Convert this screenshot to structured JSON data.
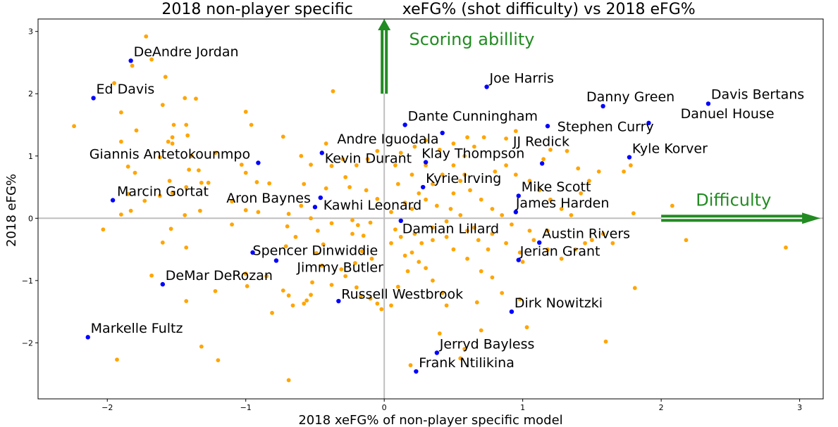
{
  "chart_data": {
    "type": "scatter",
    "title": "2018 non-player specific          xeFG% (shot difficulty) vs 2018 eFG%",
    "xlabel": "2018 xeFG% of non-player specific model",
    "ylabel": "2018 eFG%",
    "xlim": [
      -2.5,
      3.17
    ],
    "ylim": [
      -2.9,
      3.2
    ],
    "xticks": [
      -2,
      -1,
      0,
      1,
      2,
      3
    ],
    "yticks": [
      -2,
      -1,
      0,
      1,
      2,
      3
    ],
    "xtick_labels": [
      "−2",
      "−1",
      "0",
      "1",
      "2",
      "3"
    ],
    "ytick_labels": [
      "−2",
      "−1",
      "0",
      "1",
      "2",
      "3"
    ],
    "grid": false,
    "colors": {
      "highlight": "#0000ff",
      "other": "#ffa500",
      "annotation": "#228b22",
      "refline": "#bfbfbf"
    },
    "annotations": [
      {
        "text": "Scoring abillity",
        "direction": "up",
        "from": [
          0,
          2.0
        ],
        "to": [
          0,
          3.2
        ],
        "text_pos": [
          0.18,
          2.78
        ]
      },
      {
        "text": "Difficulty",
        "direction": "right",
        "from": [
          2.0,
          0
        ],
        "to": [
          3.15,
          0
        ],
        "text_pos": [
          2.25,
          0.2
        ]
      }
    ],
    "highlighted": [
      {
        "name": "DeAndre Jordan",
        "x": -1.83,
        "y": 2.53,
        "lx": -1.81,
        "ly": 2.6
      },
      {
        "name": "Ed Davis",
        "x": -2.1,
        "y": 1.93,
        "lx": -2.08,
        "ly": 2.0
      },
      {
        "name": "Giannis Antetokounmpo",
        "x": -0.91,
        "y": 0.89,
        "lx": -2.13,
        "ly": 0.96
      },
      {
        "name": "Marcin Gortat",
        "x": -1.96,
        "y": 0.29,
        "lx": -1.93,
        "ly": 0.36
      },
      {
        "name": "Aron Baynes",
        "x": -0.46,
        "y": 0.33,
        "lx": -1.14,
        "ly": 0.25
      },
      {
        "name": "Kawhi Leonard",
        "x": -0.5,
        "y": 0.18,
        "lx": -0.44,
        "ly": 0.14
      },
      {
        "name": "Spencer Dinwiddie",
        "x": -0.95,
        "y": -0.55,
        "lx": -0.95,
        "ly": -0.59
      },
      {
        "name": "Jimmy Butler",
        "x": -0.78,
        "y": -0.68,
        "lx": -0.63,
        "ly": -0.86
      },
      {
        "name": "DeMar DeRozan",
        "x": -1.6,
        "y": -1.06,
        "lx": -1.58,
        "ly": -0.99
      },
      {
        "name": "Markelle Fultz",
        "x": -2.14,
        "y": -1.91,
        "lx": -2.12,
        "ly": -1.84
      },
      {
        "name": "Russell Westbrook",
        "x": -0.33,
        "y": -1.33,
        "lx": -0.31,
        "ly": -1.29
      },
      {
        "name": "Kevin Durant",
        "x": -0.45,
        "y": 1.05,
        "lx": -0.43,
        "ly": 0.89
      },
      {
        "name": "Andre Iguodala",
        "x": 0.42,
        "y": 1.37,
        "lx": -0.34,
        "ly": 1.2
      },
      {
        "name": "Dante Cunningham",
        "x": 0.15,
        "y": 1.5,
        "lx": 0.17,
        "ly": 1.57
      },
      {
        "name": "Klay Thompson",
        "x": 0.3,
        "y": 0.9,
        "lx": 0.27,
        "ly": 0.97
      },
      {
        "name": "Kyrie Irving",
        "x": 0.28,
        "y": 0.5,
        "lx": 0.3,
        "ly": 0.57
      },
      {
        "name": "Damian Lillard",
        "x": 0.12,
        "y": -0.04,
        "lx": 0.13,
        "ly": -0.24
      },
      {
        "name": "Joe Harris",
        "x": 0.74,
        "y": 2.11,
        "lx": 0.76,
        "ly": 2.18
      },
      {
        "name": "Stephen Curry",
        "x": 1.18,
        "y": 1.48,
        "lx": 1.25,
        "ly": 1.4
      },
      {
        "name": "JJ Redick",
        "x": 1.14,
        "y": 0.88,
        "lx": 0.93,
        "ly": 1.16
      },
      {
        "name": "Mike Scott",
        "x": 0.97,
        "y": 0.36,
        "lx": 0.99,
        "ly": 0.43
      },
      {
        "name": "James Harden",
        "x": 0.95,
        "y": 0.1,
        "lx": 0.95,
        "ly": 0.17
      },
      {
        "name": "Austin Rivers",
        "x": 1.12,
        "y": -0.39,
        "lx": 1.14,
        "ly": -0.32
      },
      {
        "name": "Jerian Grant",
        "x": 0.97,
        "y": -0.67,
        "lx": 0.98,
        "ly": -0.6
      },
      {
        "name": "Dirk Nowitzki",
        "x": 0.92,
        "y": -1.5,
        "lx": 0.94,
        "ly": -1.43
      },
      {
        "name": "Danny Green",
        "x": 1.58,
        "y": 1.8,
        "lx": 1.46,
        "ly": 1.88
      },
      {
        "name": "Davis Bertans",
        "x": 2.34,
        "y": 1.84,
        "lx": 2.36,
        "ly": 1.92
      },
      {
        "name": "Danuel House",
        "x": 1.91,
        "y": 1.53,
        "lx": 2.14,
        "ly": 1.61
      },
      {
        "name": "Kyle Korver",
        "x": 1.77,
        "y": 0.98,
        "lx": 1.79,
        "ly": 1.05
      },
      {
        "name": "Jerryd Bayless",
        "x": 0.38,
        "y": -2.16,
        "lx": 0.4,
        "ly": -2.09
      },
      {
        "name": "Frank Ntilikina",
        "x": 0.23,
        "y": -2.46,
        "lx": 0.25,
        "ly": -2.39
      }
    ],
    "others": [
      [
        -1.72,
        2.92
      ],
      [
        -1.68,
        2.55
      ],
      [
        -1.82,
        2.45
      ],
      [
        -1.58,
        2.27
      ],
      [
        -0.37,
        2.04
      ],
      [
        -1.95,
        2.17
      ],
      [
        -1.9,
        1.7
      ],
      [
        -1.6,
        1.82
      ],
      [
        -1.44,
        1.93
      ],
      [
        -1.36,
        1.92
      ],
      [
        -1.79,
        1.41
      ],
      [
        -2.24,
        1.48
      ],
      [
        -1.52,
        1.5
      ],
      [
        -1.53,
        1.3
      ],
      [
        -1.43,
        1.5
      ],
      [
        -1.42,
        1.33
      ],
      [
        -1.9,
        1.23
      ],
      [
        -1.56,
        1.23
      ],
      [
        -1.53,
        1.2
      ],
      [
        -1.0,
        1.71
      ],
      [
        -0.96,
        1.5
      ],
      [
        -0.73,
        1.31
      ],
      [
        -0.42,
        1.2
      ],
      [
        -0.6,
        1.0
      ],
      [
        -1.85,
        0.83
      ],
      [
        -1.8,
        0.73
      ],
      [
        -1.62,
        0.98
      ],
      [
        -1.41,
        0.78
      ],
      [
        -1.34,
        0.77
      ],
      [
        -1.39,
        1.0
      ],
      [
        -1.22,
        1.05
      ],
      [
        -1.03,
        0.86
      ],
      [
        -1.0,
        0.73
      ],
      [
        -0.92,
        0.58
      ],
      [
        -0.53,
        0.86
      ],
      [
        -0.38,
        0.84
      ],
      [
        -0.28,
        0.66
      ],
      [
        -1.85,
        0.39
      ],
      [
        -1.55,
        0.6
      ],
      [
        -1.43,
        0.5
      ],
      [
        -1.32,
        0.57
      ],
      [
        -1.27,
        0.57
      ],
      [
        -1.9,
        0.06
      ],
      [
        -1.83,
        0.12
      ],
      [
        -1.73,
        0.28
      ],
      [
        -1.62,
        0.36
      ],
      [
        -1.53,
        0.41
      ],
      [
        -1.33,
        0.12
      ],
      [
        -1.1,
        0.27
      ],
      [
        -1.0,
        0.13
      ],
      [
        -0.83,
        0.56
      ],
      [
        -0.58,
        0.55
      ],
      [
        -0.42,
        0.48
      ],
      [
        -0.25,
        0.5
      ],
      [
        -0.13,
        0.45
      ],
      [
        -0.05,
        0.31
      ],
      [
        -2.03,
        -0.18
      ],
      [
        -1.6,
        -0.39
      ],
      [
        -1.43,
        -0.47
      ],
      [
        -1.54,
        -0.17
      ],
      [
        -1.44,
        0.05
      ],
      [
        -1.1,
        -0.1
      ],
      [
        -0.91,
        0.1
      ],
      [
        -0.69,
        0.07
      ],
      [
        -0.6,
        0.2
      ],
      [
        -0.53,
        0.0
      ],
      [
        -0.7,
        -0.13
      ],
      [
        -0.48,
        -0.2
      ],
      [
        -0.38,
        -0.08
      ],
      [
        -0.23,
        -0.03
      ],
      [
        -0.19,
        -0.11
      ],
      [
        -0.1,
        -0.07
      ],
      [
        -0.64,
        -0.3
      ],
      [
        -0.71,
        -0.45
      ],
      [
        -0.49,
        -0.56
      ],
      [
        -0.44,
        -0.42
      ],
      [
        -0.23,
        -0.25
      ],
      [
        -0.15,
        -0.28
      ],
      [
        -1.68,
        -0.92
      ],
      [
        -1.43,
        -1.33
      ],
      [
        -1.32,
        -2.06
      ],
      [
        -1.2,
        -2.28
      ],
      [
        -1.22,
        -1.17
      ],
      [
        -1.0,
        -0.89
      ],
      [
        -0.99,
        -1.09
      ],
      [
        -0.85,
        -0.93
      ],
      [
        -0.81,
        -1.52
      ],
      [
        -0.73,
        -1.16
      ],
      [
        -0.69,
        -1.24
      ],
      [
        -0.66,
        -1.4
      ],
      [
        -0.69,
        -2.6
      ],
      [
        -0.58,
        -1.37
      ],
      [
        -0.56,
        -1.32
      ],
      [
        -0.53,
        -1.23
      ],
      [
        -0.52,
        -1.03
      ],
      [
        -0.45,
        -0.76
      ],
      [
        -0.38,
        -1.07
      ],
      [
        -0.31,
        -0.82
      ],
      [
        -0.28,
        -0.93
      ],
      [
        -0.2,
        -1.11
      ],
      [
        -0.17,
        -1.25
      ],
      [
        -0.1,
        -1.29
      ],
      [
        -0.05,
        -1.37
      ],
      [
        -0.02,
        -1.46
      ],
      [
        -0.16,
        -0.53
      ],
      [
        -0.09,
        -0.65
      ],
      [
        -0.21,
        -0.72
      ],
      [
        -1.93,
        -2.27
      ],
      [
        0.05,
        -1.4
      ],
      [
        0.1,
        -1.1
      ],
      [
        0.17,
        -0.85
      ],
      [
        0.2,
        -0.55
      ],
      [
        0.27,
        -0.4
      ],
      [
        0.3,
        -0.8
      ],
      [
        0.35,
        -1.0
      ],
      [
        0.42,
        -1.2
      ],
      [
        0.45,
        -1.4
      ],
      [
        0.4,
        -1.85
      ],
      [
        0.55,
        -2.25
      ],
      [
        0.58,
        -2.1
      ],
      [
        0.67,
        -1.35
      ],
      [
        0.7,
        -1.8
      ],
      [
        0.19,
        -2.36
      ],
      [
        0.05,
        -0.4
      ],
      [
        0.12,
        -0.3
      ],
      [
        0.22,
        -0.25
      ],
      [
        0.35,
        -0.15
      ],
      [
        0.45,
        -0.3
      ],
      [
        0.5,
        -0.5
      ],
      [
        0.6,
        -0.65
      ],
      [
        0.7,
        -0.85
      ],
      [
        0.78,
        -0.95
      ],
      [
        0.85,
        -1.2
      ],
      [
        0.98,
        -1.3
      ],
      [
        1.03,
        -1.75
      ],
      [
        1.0,
        -0.7
      ],
      [
        0.05,
        0.1
      ],
      [
        0.15,
        0.25
      ],
      [
        0.25,
        0.4
      ],
      [
        0.35,
        0.55
      ],
      [
        0.42,
        0.7
      ],
      [
        0.5,
        0.85
      ],
      [
        0.58,
        1.0
      ],
      [
        0.65,
        1.15
      ],
      [
        0.72,
        1.3
      ],
      [
        0.8,
        0.75
      ],
      [
        0.88,
        0.85
      ],
      [
        0.95,
        0.7
      ],
      [
        1.05,
        0.6
      ],
      [
        1.12,
        0.45
      ],
      [
        1.2,
        0.3
      ],
      [
        1.28,
        0.15
      ],
      [
        1.35,
        0.05
      ],
      [
        1.42,
        0.4
      ],
      [
        1.48,
        0.6
      ],
      [
        1.55,
        0.75
      ],
      [
        1.73,
        0.75
      ],
      [
        1.78,
        0.85
      ],
      [
        1.4,
        0.8
      ],
      [
        1.32,
        1.08
      ],
      [
        1.2,
        1.1
      ],
      [
        1.15,
        0.95
      ],
      [
        0.88,
        1.28
      ],
      [
        0.95,
        1.4
      ],
      [
        0.1,
        0.55
      ],
      [
        0.2,
        0.7
      ],
      [
        0.3,
        0.85
      ],
      [
        0.55,
        0.6
      ],
      [
        0.62,
        0.45
      ],
      [
        0.7,
        0.3
      ],
      [
        0.78,
        0.15
      ],
      [
        0.85,
        0.05
      ],
      [
        0.92,
        -0.1
      ],
      [
        1.05,
        -0.2
      ],
      [
        1.18,
        -0.5
      ],
      [
        1.28,
        -0.65
      ],
      [
        1.38,
        -0.5
      ],
      [
        1.45,
        -0.4
      ],
      [
        1.5,
        -0.35
      ],
      [
        1.58,
        -0.25
      ],
      [
        1.65,
        -0.4
      ],
      [
        1.8,
        0.08
      ],
      [
        2.08,
        0.2
      ],
      [
        2.18,
        -0.35
      ],
      [
        2.9,
        -0.47
      ],
      [
        1.6,
        -1.98
      ],
      [
        1.81,
        -1.12
      ],
      [
        0.6,
        -0.2
      ],
      [
        0.68,
        -0.35
      ],
      [
        0.75,
        -0.5
      ],
      [
        0.48,
        0.15
      ],
      [
        0.38,
        0.2
      ],
      [
        0.3,
        0.3
      ],
      [
        0.2,
        0.15
      ],
      [
        0.08,
        -0.18
      ],
      [
        0.15,
        -0.6
      ],
      [
        0.25,
        -0.7
      ],
      [
        0.35,
        -0.35
      ],
      [
        0.45,
        -0.05
      ],
      [
        0.55,
        0.05
      ],
      [
        0.65,
        -0.15
      ],
      [
        0.78,
        -0.25
      ],
      [
        0.88,
        -0.4
      ],
      [
        0.98,
        -0.55
      ],
      [
        1.08,
        -0.35
      ],
      [
        1.18,
        -0.2
      ],
      [
        0.12,
        1.05
      ],
      [
        0.22,
        1.15
      ],
      [
        0.3,
        1.25
      ],
      [
        0.4,
        1.1
      ],
      [
        0.5,
        1.2
      ],
      [
        0.6,
        1.3
      ],
      [
        0.5,
        0.4
      ],
      [
        0.58,
        0.7
      ],
      [
        -0.12,
        0.95
      ],
      [
        -0.2,
        0.85
      ],
      [
        -0.3,
        0.95
      ],
      [
        -0.05,
        1.08
      ],
      [
        0.08,
        0.85
      ]
    ]
  }
}
